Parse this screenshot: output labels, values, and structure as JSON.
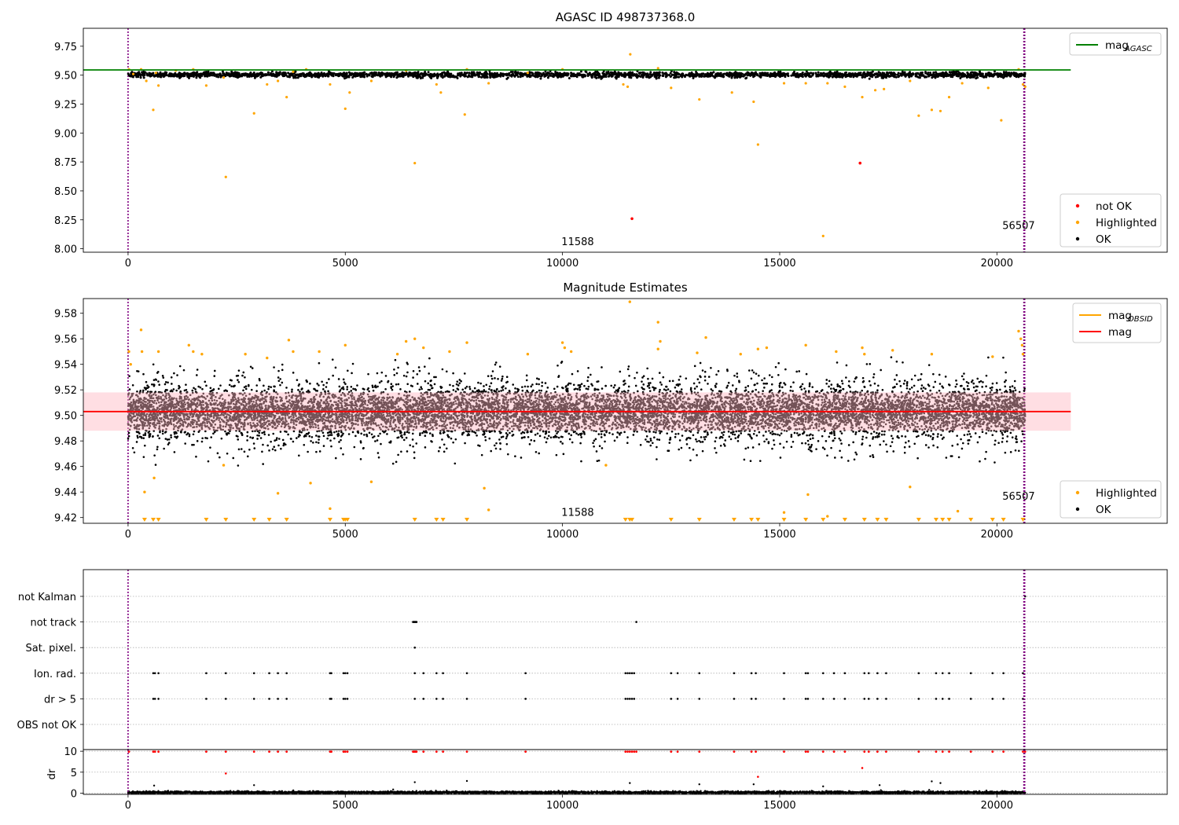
{
  "figure": {
    "background": "#ffffff"
  },
  "colors": {
    "ok": "#000000",
    "highlighted": "#ffa500",
    "not_ok": "#ff0000",
    "agasc_line": "#008000",
    "mean_line": "#ff0000",
    "band_fill": "#ffb6c1",
    "obsid_boundary": "#800080",
    "grid": "#b0b0b0"
  },
  "chart_data": [
    {
      "id": "agasc",
      "type": "scatter",
      "title": "AGASC ID 498737368.0",
      "xlim": [
        -1030,
        23920
      ],
      "ylim": [
        7.97,
        9.905
      ],
      "xticks": [
        0,
        5000,
        10000,
        15000,
        20000
      ],
      "yticks": [
        8.0,
        8.25,
        8.5,
        8.75,
        9.0,
        9.25,
        9.5,
        9.75
      ],
      "ytick_decimals": 2,
      "agasc_mag": 9.545,
      "agasc_line_x": [
        -1030,
        21700
      ],
      "ok_band": {
        "center": 9.503,
        "spread": 0.035,
        "x_range": [
          0,
          20650
        ]
      },
      "obsid_boundaries": [
        0,
        20620,
        20640
      ],
      "obsid_labels": [
        {
          "text": "11588",
          "x": 10350,
          "y": 8.03
        },
        {
          "text": "56507",
          "x": 20500,
          "y": 8.17
        }
      ],
      "highlighted_points": [
        [
          20,
          9.55
        ],
        [
          120,
          9.51
        ],
        [
          300,
          9.55
        ],
        [
          420,
          9.45
        ],
        [
          580,
          9.2
        ],
        [
          640,
          9.52
        ],
        [
          700,
          9.41
        ],
        [
          1100,
          9.54
        ],
        [
          1500,
          9.55
        ],
        [
          1800,
          9.41
        ],
        [
          2200,
          9.48
        ],
        [
          2250,
          8.62
        ],
        [
          2900,
          9.17
        ],
        [
          3200,
          9.42
        ],
        [
          3450,
          9.45
        ],
        [
          3650,
          9.31
        ],
        [
          3800,
          9.53
        ],
        [
          4100,
          9.55
        ],
        [
          4650,
          9.42
        ],
        [
          5000,
          9.21
        ],
        [
          5100,
          9.35
        ],
        [
          5600,
          9.45
        ],
        [
          6400,
          9.54
        ],
        [
          6600,
          8.74
        ],
        [
          7100,
          9.42
        ],
        [
          7200,
          9.35
        ],
        [
          7750,
          9.16
        ],
        [
          7800,
          9.55
        ],
        [
          8300,
          9.43
        ],
        [
          9200,
          9.52
        ],
        [
          10000,
          9.55
        ],
        [
          11400,
          9.42
        ],
        [
          11500,
          9.4
        ],
        [
          11560,
          9.68
        ],
        [
          12200,
          9.56
        ],
        [
          12500,
          9.39
        ],
        [
          13150,
          9.29
        ],
        [
          13900,
          9.35
        ],
        [
          14400,
          9.27
        ],
        [
          14500,
          8.9
        ],
        [
          15100,
          9.43
        ],
        [
          15600,
          9.43
        ],
        [
          16000,
          8.11
        ],
        [
          16100,
          9.43
        ],
        [
          16500,
          9.4
        ],
        [
          16900,
          9.31
        ],
        [
          17200,
          9.37
        ],
        [
          17400,
          9.38
        ],
        [
          18000,
          9.45
        ],
        [
          18200,
          9.15
        ],
        [
          18500,
          9.2
        ],
        [
          18700,
          9.19
        ],
        [
          18900,
          9.31
        ],
        [
          19200,
          9.43
        ],
        [
          19800,
          9.39
        ],
        [
          20100,
          9.11
        ],
        [
          20500,
          9.55
        ],
        [
          20600,
          9.42
        ],
        [
          20650,
          9.4
        ]
      ],
      "not_ok_points": [
        [
          11600,
          8.26
        ],
        [
          16850,
          8.74
        ]
      ],
      "legend_top": [
        {
          "label": "mag",
          "sub": "AGASC",
          "color": "#008000",
          "kind": "line"
        }
      ],
      "legend_bottom": [
        {
          "label": "not OK",
          "color": "#ff0000",
          "kind": "dot"
        },
        {
          "label": "Highlighted",
          "color": "#ffa500",
          "kind": "dot"
        },
        {
          "label": "OK",
          "color": "#000000",
          "kind": "dot"
        }
      ]
    },
    {
      "id": "estimates",
      "type": "scatter",
      "title": "Magnitude Estimates",
      "xlim": [
        -1030,
        23920
      ],
      "ylim": [
        9.4155,
        9.5915
      ],
      "xticks": [
        0,
        5000,
        10000,
        15000,
        20000
      ],
      "yticks": [
        9.42,
        9.44,
        9.46,
        9.48,
        9.5,
        9.52,
        9.54,
        9.56,
        9.58
      ],
      "ytick_decimals": 2,
      "mean_mag": 9.503,
      "mean_line_x": [
        -1030,
        21700
      ],
      "band": [
        9.488,
        9.518
      ],
      "ok_band": {
        "center": 9.503,
        "spread": 0.043,
        "x_range": [
          0,
          20650
        ]
      },
      "obsid_boundaries": [
        0,
        20620,
        20640
      ],
      "obsid_labels": [
        {
          "text": "11588",
          "x": 10350,
          "y": 9.4215
        },
        {
          "text": "56507",
          "x": 20500,
          "y": 9.434
        }
      ],
      "highlighted_points": [
        [
          20,
          9.55
        ],
        [
          60,
          9.54
        ],
        [
          300,
          9.567
        ],
        [
          320,
          9.55
        ],
        [
          380,
          9.44
        ],
        [
          600,
          9.451
        ],
        [
          700,
          9.55
        ],
        [
          1400,
          9.555
        ],
        [
          1500,
          9.55
        ],
        [
          1700,
          9.548
        ],
        [
          2200,
          9.461
        ],
        [
          2700,
          9.548
        ],
        [
          3200,
          9.545
        ],
        [
          3450,
          9.439
        ],
        [
          3700,
          9.559
        ],
        [
          3800,
          9.55
        ],
        [
          4200,
          9.447
        ],
        [
          4400,
          9.55
        ],
        [
          4650,
          9.427
        ],
        [
          5000,
          9.555
        ],
        [
          5600,
          9.448
        ],
        [
          6200,
          9.548
        ],
        [
          6400,
          9.558
        ],
        [
          6600,
          9.56
        ],
        [
          6800,
          9.553
        ],
        [
          7400,
          9.55
        ],
        [
          7800,
          9.557
        ],
        [
          8200,
          9.443
        ],
        [
          8300,
          9.426
        ],
        [
          9200,
          9.548
        ],
        [
          10000,
          9.557
        ],
        [
          10050,
          9.553
        ],
        [
          10200,
          9.55
        ],
        [
          11000,
          9.461
        ],
        [
          11550,
          9.589
        ],
        [
          12200,
          9.573
        ],
        [
          12250,
          9.558
        ],
        [
          12200,
          9.552
        ],
        [
          13100,
          9.549
        ],
        [
          13300,
          9.561
        ],
        [
          14100,
          9.548
        ],
        [
          14500,
          9.552
        ],
        [
          14700,
          9.553
        ],
        [
          15100,
          9.424
        ],
        [
          15600,
          9.555
        ],
        [
          15650,
          9.438
        ],
        [
          16100,
          9.421
        ],
        [
          16300,
          9.55
        ],
        [
          16900,
          9.553
        ],
        [
          16950,
          9.548
        ],
        [
          17600,
          9.551
        ],
        [
          18000,
          9.444
        ],
        [
          18500,
          9.548
        ],
        [
          19100,
          9.425
        ],
        [
          19900,
          9.546
        ],
        [
          20500,
          9.566
        ],
        [
          20550,
          9.56
        ],
        [
          20580,
          9.555
        ],
        [
          20600,
          9.548
        ]
      ],
      "below_axis_markers": [
        380,
        580,
        700,
        1800,
        2250,
        2900,
        3250,
        3650,
        4650,
        4960,
        5000,
        5050,
        6600,
        7100,
        7250,
        7800,
        11450,
        11550,
        11600,
        12500,
        13150,
        13950,
        14350,
        14500,
        15100,
        15600,
        16000,
        16500,
        16950,
        17250,
        17450,
        18200,
        18600,
        18750,
        18900,
        19400,
        19900,
        20150,
        20600
      ],
      "legend_top": [
        {
          "label": "mag",
          "sub": "OBSID",
          "color": "#ffa500",
          "kind": "line"
        },
        {
          "label": "mag",
          "sub": "",
          "color": "#ff0000",
          "kind": "line"
        }
      ],
      "legend_bottom": [
        {
          "label": "Highlighted",
          "color": "#ffa500",
          "kind": "dot"
        },
        {
          "label": "OK",
          "color": "#000000",
          "kind": "dot"
        }
      ]
    },
    {
      "id": "flags",
      "type": "scatter",
      "title": "",
      "xlim": [
        -1030,
        23920
      ],
      "xticks": [
        0,
        5000,
        10000,
        15000,
        20000
      ],
      "categories": [
        "not Kalman",
        "not track",
        "Sat. pixel.",
        "Ion. rad.",
        "dr > 5",
        "OBS not OK"
      ],
      "obsid_boundaries": [
        0,
        20620,
        20640
      ],
      "flag_points": {
        "not Kalman": [
          20650
        ],
        "not track": [
          6560,
          6580,
          6600,
          6620,
          6640,
          11700
        ],
        "Sat. pixel.": [
          6600
        ],
        "Ion. rad.": [
          580,
          620,
          700,
          1800,
          2250,
          2900,
          3250,
          3450,
          3650,
          4650,
          4680,
          4960,
          5000,
          5050,
          6600,
          6800,
          7100,
          7250,
          7800,
          9150,
          11450,
          11500,
          11550,
          11600,
          11650,
          12500,
          12650,
          13150,
          13950,
          14350,
          14450,
          15100,
          15600,
          15650,
          16000,
          16250,
          16500,
          16950,
          17050,
          17250,
          17450,
          18200,
          18600,
          18750,
          18900,
          19400,
          19900,
          20150,
          20600
        ],
        "dr > 5": [
          580,
          620,
          700,
          1800,
          2250,
          2900,
          3250,
          3450,
          3650,
          4650,
          4680,
          4960,
          5000,
          5050,
          6600,
          6800,
          7100,
          7250,
          7800,
          9150,
          11450,
          11500,
          11550,
          11600,
          11650,
          12500,
          12650,
          13150,
          13950,
          14350,
          14450,
          15100,
          15600,
          15650,
          16000,
          16250,
          16500,
          16950,
          17050,
          17250,
          17450,
          18200,
          18600,
          18750,
          18900,
          19400,
          19900,
          20150,
          20600
        ],
        "OBS not OK": []
      }
    },
    {
      "id": "dr",
      "type": "scatter",
      "ylabel": "dr",
      "xlim": [
        -1030,
        23920
      ],
      "ylim": [
        -0.3,
        10.4
      ],
      "xticks": [
        0,
        5000,
        10000,
        15000,
        20000
      ],
      "yticks": [
        0,
        5,
        10
      ],
      "ytick_decimals": 0,
      "obsid_boundaries": [
        0,
        20620,
        20640
      ],
      "capped_points_at_10": [
        20,
        580,
        620,
        700,
        1800,
        2250,
        2900,
        3250,
        3450,
        3650,
        4650,
        4680,
        4960,
        5000,
        5050,
        6560,
        6580,
        6600,
        6620,
        6640,
        6800,
        7100,
        7250,
        7800,
        9150,
        11450,
        11500,
        11550,
        11600,
        11650,
        11700,
        12500,
        12650,
        13150,
        13950,
        14350,
        14450,
        15100,
        15600,
        15650,
        16000,
        16250,
        16500,
        16950,
        17050,
        17250,
        17450,
        18200,
        18600,
        18750,
        18900,
        19400,
        19900,
        20150,
        20600,
        20650
      ],
      "red_points": [
        [
          2250,
          4.7
        ],
        [
          14500,
          3.9
        ],
        [
          16900,
          6.0
        ]
      ],
      "black_outliers": [
        [
          600,
          1.8
        ],
        [
          2900,
          1.9
        ],
        [
          6600,
          2.6
        ],
        [
          7800,
          2.9
        ],
        [
          11550,
          2.4
        ],
        [
          13150,
          2.1
        ],
        [
          14400,
          2.1
        ],
        [
          16000,
          1.6
        ],
        [
          17300,
          1.9
        ],
        [
          18500,
          2.8
        ],
        [
          18700,
          2.4
        ]
      ]
    }
  ]
}
